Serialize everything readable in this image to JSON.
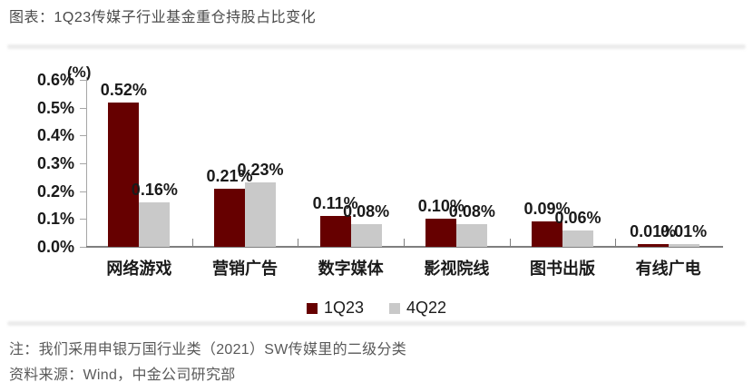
{
  "title": "图表：1Q23传媒子行业基金重仓持股占比变化",
  "chart_data": {
    "type": "bar",
    "title": "1Q23传媒子行业基金重仓持股占比变化",
    "categories": [
      "网络游戏",
      "营销广告",
      "数字媒体",
      "影视院线",
      "图书出版",
      "有线广电"
    ],
    "series": [
      {
        "name": "1Q23",
        "color": "#660000",
        "values": [
          0.52,
          0.21,
          0.11,
          0.1,
          0.09,
          0.01
        ]
      },
      {
        "name": "4Q22",
        "color": "#C9C9C9",
        "values": [
          0.16,
          0.23,
          0.08,
          0.08,
          0.06,
          0.01
        ]
      }
    ],
    "data_labels": [
      [
        "0.52%",
        "0.21%",
        "0.11%",
        "0.10%",
        "0.09%",
        "0.01%"
      ],
      [
        "0.16%",
        "0.23%",
        "0.08%",
        "0.08%",
        "0.06%",
        "0.01%"
      ]
    ],
    "ylabel": "(%)",
    "ylim": [
      0,
      0.6
    ],
    "ytick_step": 0.1,
    "ytick_labels": [
      "0.0%",
      "0.1%",
      "0.2%",
      "0.3%",
      "0.4%",
      "0.5%",
      "0.6%"
    ],
    "grid": false,
    "legend_position": "bottom"
  },
  "legend": {
    "item1": "1Q23",
    "item2": "4Q22"
  },
  "colors": {
    "series1": "#660000",
    "series2": "#C9C9C9",
    "axis": "#A6A6A6",
    "baseline": "#7F7F7F",
    "chart_text": "#1A1A1A",
    "title_text": "#4A4A4A",
    "footer_text": "#595959"
  },
  "footer": {
    "note": "注：我们采用申银万国行业类（2021）SW传媒里的二级分类",
    "source": "资料来源：Wind，中金公司研究部"
  }
}
